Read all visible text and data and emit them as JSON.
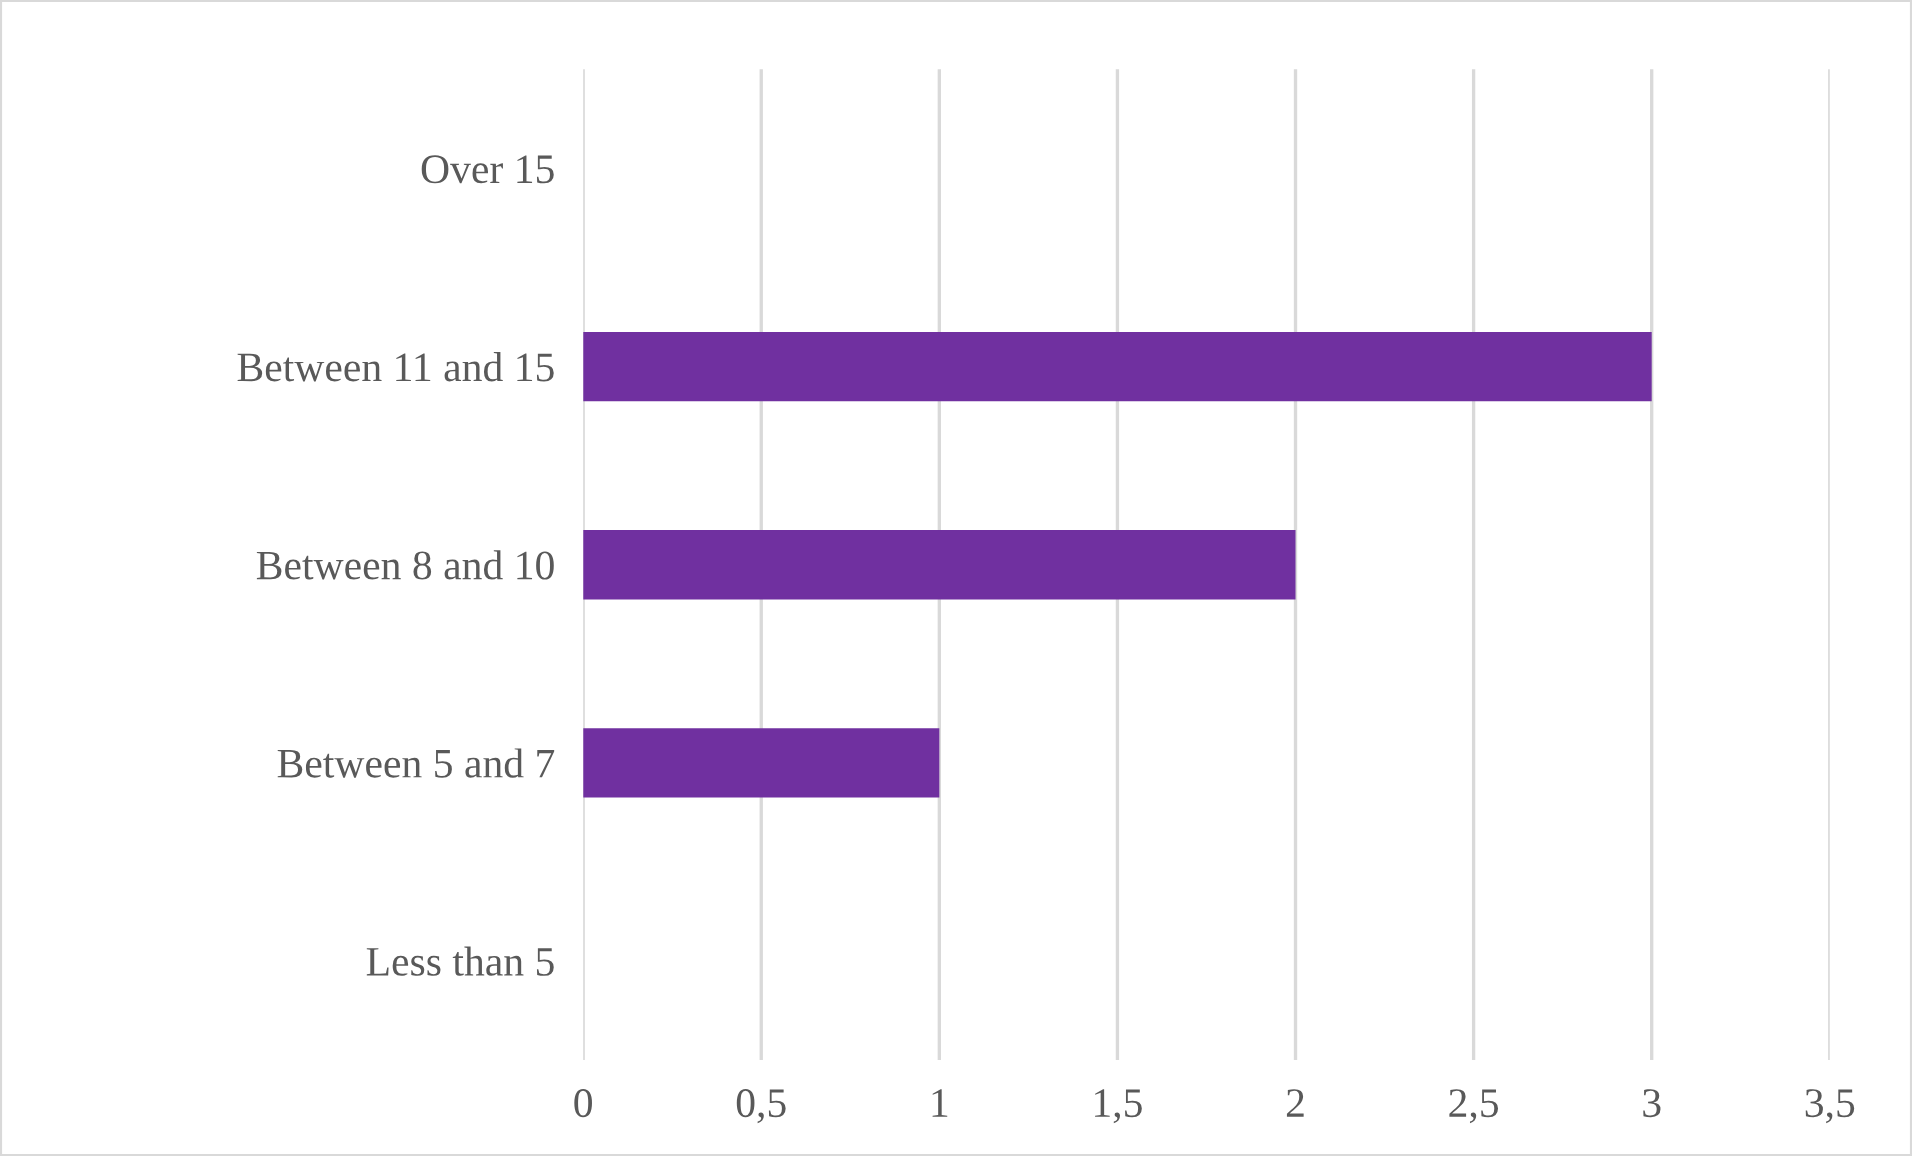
{
  "chart_data": {
    "type": "bar",
    "orientation": "horizontal",
    "categories": [
      "Over 15",
      "Between 11 and 15",
      "Between 8 and 10",
      "Between 5 and 7",
      "Less than 5"
    ],
    "values": [
      0,
      3,
      2,
      1,
      0
    ],
    "color": "#7030a0",
    "xlim": [
      0,
      3.5
    ],
    "xticks": [
      0,
      {
        "value": 0.5,
        "label": "0,5"
      },
      1,
      {
        "value": 1.5,
        "label": "1,5"
      },
      2,
      {
        "value": 2.5,
        "label": "2,5"
      },
      3,
      {
        "value": 3.5,
        "label": "3,5"
      }
    ],
    "grid": "x",
    "legend": false
  }
}
